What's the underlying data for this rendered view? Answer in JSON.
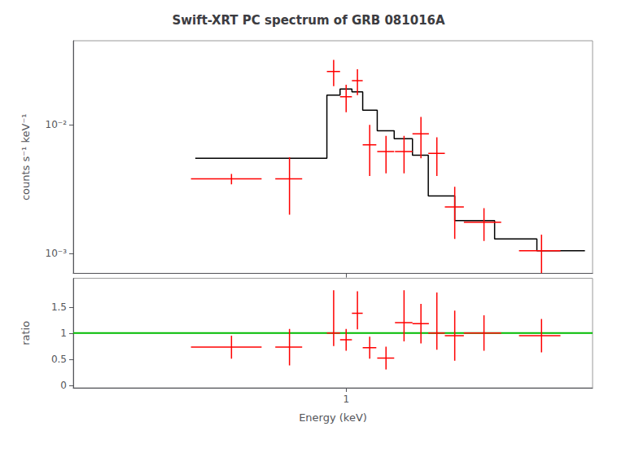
{
  "chart_data": [
    {
      "type": "line",
      "title": "Swift-XRT PC spectrum of GRB 081016A",
      "ylabel": "counts s⁻¹ keV⁻¹",
      "log": true,
      "xlim": [
        0.1,
        8.0
      ],
      "xticks": [
        1
      ],
      "ylim": [
        0.0007,
        0.045
      ],
      "yticks": [
        {
          "value": 0.001,
          "label": "10⁻³"
        },
        {
          "value": 0.01,
          "label": "10⁻²"
        }
      ],
      "grid": false,
      "tick_labels": "y",
      "series": [
        {
          "color": "#000000",
          "x": [
            0.28,
            0.85,
            0.85,
            0.95,
            0.95,
            1.05,
            1.05,
            1.15,
            1.15,
            1.3,
            1.3,
            1.5,
            1.5,
            1.75,
            1.75,
            2.0,
            2.0,
            2.5,
            2.5,
            3.5,
            3.5,
            5.0,
            5.0,
            7.5
          ],
          "values": [
            0.0055,
            0.0055,
            0.017,
            0.017,
            0.019,
            0.019,
            0.018,
            0.018,
            0.013,
            0.013,
            0.009,
            0.009,
            0.0078,
            0.0078,
            0.0058,
            0.0058,
            0.0028,
            0.0028,
            0.0018,
            0.0018,
            0.0013,
            0.0013,
            0.00105,
            0.00105
          ]
        },
        {
          "type": "errorbar",
          "color": "#ff0000",
          "x": [
            0.38,
            0.62,
            0.9,
            1.0,
            1.1,
            1.22,
            1.4,
            1.63,
            1.88,
            2.15,
            2.5,
            3.2,
            5.2
          ],
          "values": [
            0.0038,
            0.0038,
            0.026,
            0.0165,
            0.022,
            0.007,
            0.0062,
            0.0062,
            0.0085,
            0.006,
            0.0023,
            0.00175,
            0.00105
          ],
          "xerr": [
            0.11,
            0.07,
            0.05,
            0.05,
            0.05,
            0.07,
            0.1,
            0.12,
            0.13,
            0.15,
            0.2,
            0.5,
            0.9
          ],
          "yerr_lo": [
            0.00035,
            0.0018,
            0.006,
            0.004,
            0.005,
            0.003,
            0.002,
            0.002,
            0.003,
            0.002,
            0.001,
            0.0005,
            0.00035
          ],
          "yerr_hi": [
            0.00035,
            0.0018,
            0.006,
            0.004,
            0.005,
            0.003,
            0.002,
            0.002,
            0.003,
            0.002,
            0.001,
            0.0005,
            0.00035
          ]
        }
      ]
    },
    {
      "type": "errorbar",
      "xlabel": "Energy (keV)",
      "ylabel": "ratio",
      "log": "x",
      "xlim": [
        0.1,
        8.0
      ],
      "xticks": [
        1
      ],
      "ylim": [
        -0.05,
        2.05
      ],
      "yticks": [
        0,
        0.5,
        1,
        1.5
      ],
      "grid": false,
      "reference_line": {
        "y": 1.0,
        "color": "#00bb00"
      },
      "series": [
        {
          "color": "#ff0000",
          "x": [
            0.38,
            0.62,
            0.9,
            1.0,
            1.1,
            1.22,
            1.4,
            1.63,
            1.88,
            2.15,
            2.5,
            3.2,
            5.2
          ],
          "values": [
            0.73,
            0.73,
            1.0,
            0.87,
            1.38,
            0.72,
            0.52,
            1.2,
            1.18,
            1.0,
            0.95,
            1.0,
            0.95
          ],
          "xerr": [
            0.11,
            0.07,
            0.05,
            0.05,
            0.05,
            0.07,
            0.1,
            0.12,
            0.13,
            0.15,
            0.2,
            0.5,
            0.9
          ],
          "yerr_lo": [
            0.22,
            0.35,
            0.25,
            0.21,
            0.31,
            0.21,
            0.22,
            0.36,
            0.38,
            0.32,
            0.48,
            0.34,
            0.32
          ],
          "yerr_hi": [
            0.22,
            0.35,
            0.82,
            0.21,
            0.42,
            0.21,
            0.22,
            0.62,
            0.38,
            0.78,
            0.48,
            0.34,
            0.32
          ]
        }
      ]
    }
  ]
}
